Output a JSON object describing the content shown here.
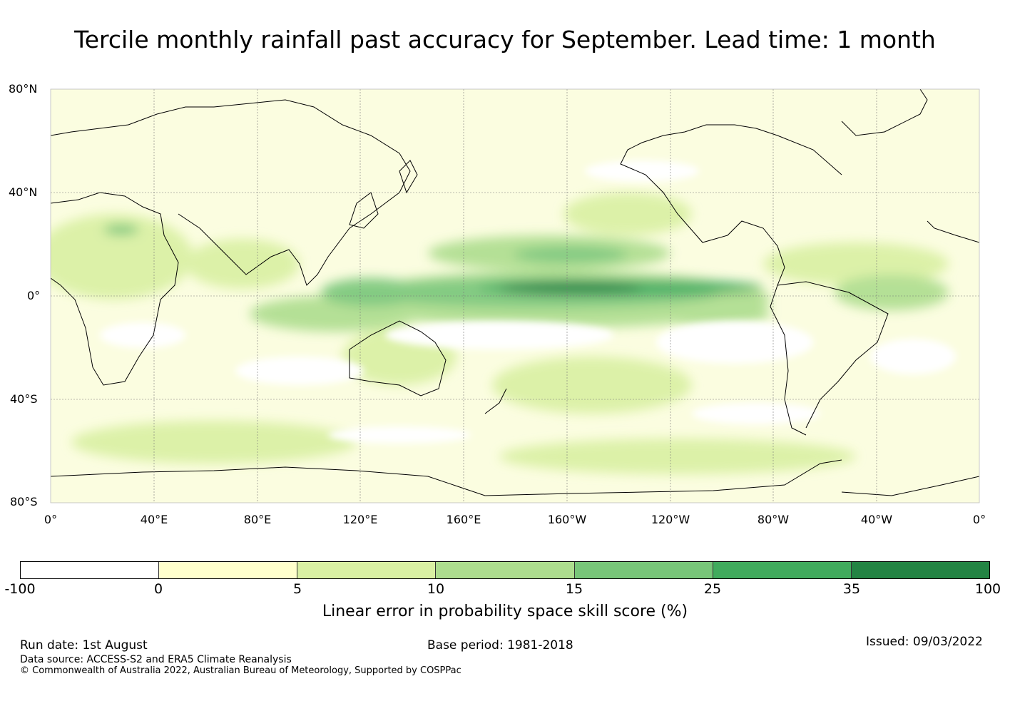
{
  "title": "Tercile monthly rainfall past accuracy for September. Lead time: 1 month",
  "map": {
    "lat_labels": [
      "80°N",
      "40°N",
      "0°",
      "40°S",
      "80°S"
    ],
    "lon_labels": [
      "0°",
      "40°E",
      "80°E",
      "120°E",
      "160°E",
      "160°W",
      "120°W",
      "80°W",
      "40°W",
      "0°"
    ],
    "ocean_fill": "#fbfde0",
    "skill_colors": [
      "#ffffff",
      "#ffffcc",
      "#d9f0a3",
      "#addd8e",
      "#78c679",
      "#41ab5d",
      "#238443"
    ]
  },
  "colorbar": {
    "ticks": [
      "-100",
      "0",
      "5",
      "10",
      "15",
      "25",
      "35",
      "100"
    ],
    "colors": [
      "#ffffff",
      "#ffffcc",
      "#d9f0a3",
      "#addd8e",
      "#78c679",
      "#41ab5d",
      "#238443"
    ],
    "label": "Linear error in probability space skill score (%)"
  },
  "footer": {
    "run_date": "Run date: 1st August",
    "base_period": "Base period: 1981-2018",
    "issued": "Issued: 09/03/2022",
    "data_source": "Data source: ACCESS-S2 and ERA5 Climate Reanalysis",
    "copyright": "© Commonwealth of Australia 2022, Australian Bureau of Meteorology, Supported by COSPPac"
  }
}
